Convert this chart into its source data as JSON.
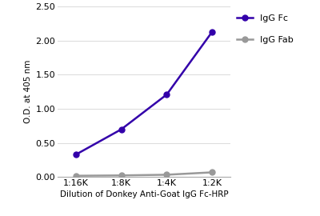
{
  "x_labels": [
    "1:16K",
    "1:8K",
    "1:4K",
    "1:2K"
  ],
  "x_values": [
    1,
    2,
    3,
    4
  ],
  "igg_fc_values": [
    0.33,
    0.7,
    1.21,
    2.13
  ],
  "igg_fab_values": [
    0.02,
    0.025,
    0.035,
    0.07
  ],
  "igg_fc_color": "#3300AA",
  "igg_fab_color": "#999999",
  "ylabel": "O.D. at 405 nm",
  "xlabel": "Dilution of Donkey Anti-Goat IgG Fc-HRP",
  "ylim": [
    0,
    2.5
  ],
  "yticks": [
    0.0,
    0.5,
    1.0,
    1.5,
    2.0,
    2.5
  ],
  "legend_labels": [
    "IgG Fc",
    "IgG Fab"
  ],
  "marker": "o",
  "linewidth": 1.8,
  "markersize": 5,
  "background_color": "#ffffff",
  "grid_color": "#dddddd"
}
